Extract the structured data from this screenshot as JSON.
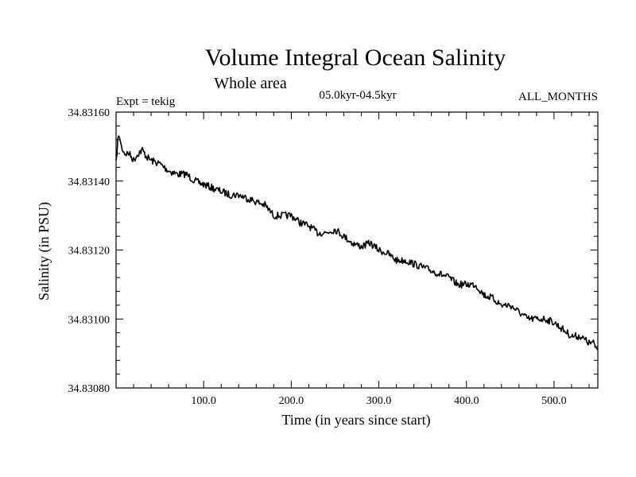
{
  "header": {
    "title": "Volume Integral Ocean Salinity",
    "subtitle": "Whole area",
    "expt_label": "Expt = tekig",
    "period_label": "05.0kyr-04.5kyr",
    "months_label": "ALL_MONTHS"
  },
  "chart_data": {
    "type": "line",
    "title": "Volume Integral Ocean Salinity",
    "subtitle": "Whole area",
    "xlabel": "Time (in years since start)",
    "ylabel": "Salinity (in PSU)",
    "xlim": [
      0,
      550
    ],
    "ylim": [
      34.8308,
      34.8316
    ],
    "x_ticks": [
      100,
      200,
      300,
      400,
      500
    ],
    "x_tick_labels": [
      "100.0",
      "200.0",
      "300.0",
      "400.0",
      "500.0"
    ],
    "y_ticks": [
      34.8308,
      34.831,
      34.8312,
      34.8314,
      34.8316
    ],
    "y_tick_labels": [
      "34.83080",
      "34.83100",
      "34.83120",
      "34.83140",
      "34.83160"
    ],
    "grid": false,
    "series": [
      {
        "name": "salinity",
        "color": "#000000",
        "x": [
          0,
          2,
          4,
          6,
          10,
          15,
          20,
          25,
          30,
          35,
          40,
          50,
          60,
          70,
          80,
          90,
          100,
          110,
          120,
          130,
          140,
          150,
          160,
          170,
          180,
          190,
          200,
          210,
          220,
          230,
          240,
          250,
          260,
          270,
          280,
          290,
          300,
          310,
          320,
          330,
          340,
          350,
          360,
          370,
          380,
          390,
          400,
          410,
          420,
          430,
          440,
          450,
          460,
          470,
          480,
          490,
          500,
          510,
          520,
          530,
          540,
          545,
          550
        ],
        "y": [
          34.83145,
          34.83152,
          34.83153,
          34.8315,
          34.83148,
          34.83148,
          34.83146,
          34.83148,
          34.83149,
          34.83147,
          34.83146,
          34.83145,
          34.83143,
          34.83142,
          34.83142,
          34.8314,
          34.83139,
          34.83138,
          34.83137,
          34.83136,
          34.83136,
          34.83135,
          34.83134,
          34.83133,
          34.8313,
          34.8313,
          34.8313,
          34.83128,
          34.83127,
          34.83125,
          34.83125,
          34.83126,
          34.83124,
          34.83122,
          34.83121,
          34.83122,
          34.8312,
          34.83119,
          34.83117,
          34.83117,
          34.83116,
          34.83115,
          34.83114,
          34.83113,
          34.83112,
          34.8311,
          34.8311,
          34.8311,
          34.83107,
          34.83106,
          34.83104,
          34.83104,
          34.83102,
          34.831,
          34.831,
          34.831,
          34.83099,
          34.83097,
          34.83095,
          34.83095,
          34.83093,
          34.83093,
          34.83091
        ]
      }
    ]
  }
}
